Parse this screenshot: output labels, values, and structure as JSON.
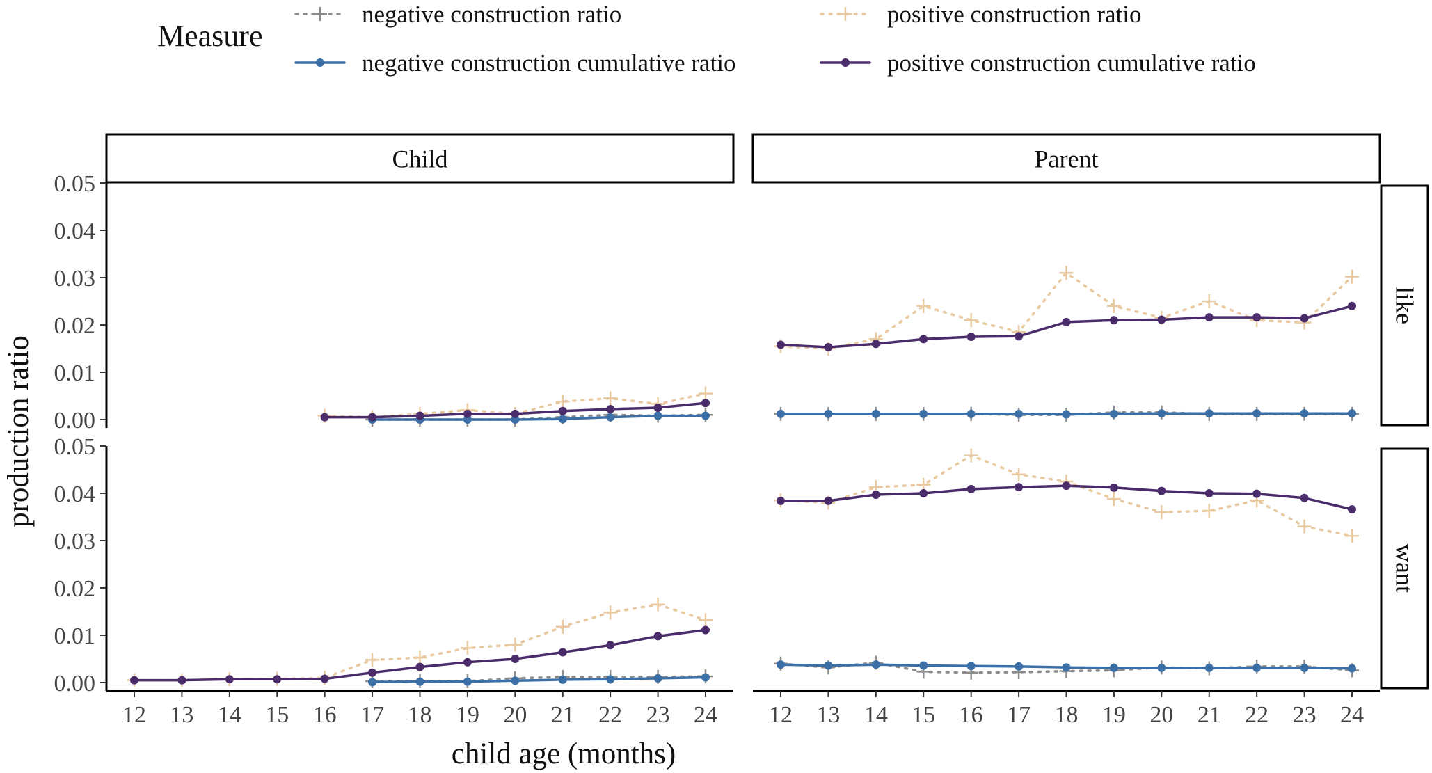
{
  "chart_data": {
    "type": "line",
    "xlabel": "child age (months)",
    "ylabel": "production ratio",
    "x": [
      12,
      13,
      14,
      15,
      16,
      17,
      18,
      19,
      20,
      21,
      22,
      23,
      24
    ],
    "x_ticks": [
      "12",
      "13",
      "14",
      "15",
      "16",
      "17",
      "18",
      "19",
      "20",
      "21",
      "22",
      "23",
      "24"
    ],
    "ylim": [
      0,
      0.05
    ],
    "y_ticks": [
      "0.00",
      "0.01",
      "0.02",
      "0.03",
      "0.04",
      "0.05"
    ],
    "columns": [
      "Child",
      "Parent"
    ],
    "rows": [
      "like",
      "want"
    ],
    "legend": {
      "title": "Measure",
      "position": "top",
      "entries": [
        {
          "key": "neg",
          "label": "negative construction ratio"
        },
        {
          "key": "pos",
          "label": "positive construction ratio"
        },
        {
          "key": "negcum",
          "label": "negative construction cumulative ratio"
        },
        {
          "key": "poscum",
          "label": "positive construction cumulative ratio"
        }
      ]
    },
    "styles": {
      "neg": {
        "color": "#8c8c8c",
        "dash": "dotted",
        "marker": "plus"
      },
      "pos": {
        "color": "#e8c9a0",
        "dash": "dotted",
        "marker": "plus"
      },
      "negcum": {
        "color": "#3b6fa6",
        "dash": "solid",
        "marker": "dot"
      },
      "poscum": {
        "color": "#4b2c6b",
        "dash": "solid",
        "marker": "dot"
      }
    },
    "grid": false,
    "panels": [
      {
        "column": "Child",
        "row": "like",
        "series": {
          "neg": [
            null,
            null,
            null,
            null,
            null,
            0.0,
            0.0,
            0.0,
            0.0,
            0.0005,
            0.001,
            0.0008,
            0.001
          ],
          "pos": [
            null,
            null,
            null,
            null,
            0.0008,
            0.0005,
            0.0012,
            0.002,
            0.0012,
            0.0038,
            0.0045,
            0.0033,
            0.0055
          ],
          "negcum": [
            null,
            null,
            null,
            null,
            null,
            0.0,
            0.0,
            0.0,
            0.0,
            0.0001,
            0.0005,
            0.0008,
            0.0008
          ],
          "poscum": [
            null,
            null,
            null,
            null,
            0.0005,
            0.0005,
            0.0008,
            0.0012,
            0.0012,
            0.0018,
            0.0022,
            0.0025,
            0.0035
          ]
        }
      },
      {
        "column": "Parent",
        "row": "like",
        "series": {
          "neg": [
            0.0012,
            0.0012,
            0.0012,
            0.0012,
            0.0012,
            0.001,
            0.001,
            0.0015,
            0.0015,
            0.0012,
            0.0012,
            0.0012,
            0.0012
          ],
          "pos": [
            0.0155,
            0.015,
            0.017,
            0.024,
            0.021,
            0.0185,
            0.031,
            0.024,
            0.0215,
            0.025,
            0.021,
            0.0205,
            0.0302
          ],
          "negcum": [
            0.0012,
            0.0012,
            0.0012,
            0.0012,
            0.0012,
            0.0012,
            0.0011,
            0.0012,
            0.0013,
            0.0013,
            0.0013,
            0.0013,
            0.0013
          ],
          "poscum": [
            0.0158,
            0.0153,
            0.016,
            0.017,
            0.0175,
            0.0176,
            0.0206,
            0.021,
            0.0211,
            0.0216,
            0.0216,
            0.0214,
            0.024
          ]
        }
      },
      {
        "column": "Child",
        "row": "want",
        "series": {
          "neg": [
            null,
            null,
            null,
            null,
            null,
            0.0003,
            0.0003,
            0.0003,
            0.0009,
            0.0012,
            0.0012,
            0.0012,
            0.0013
          ],
          "pos": [
            0.0005,
            0.0005,
            0.0007,
            0.0008,
            0.001,
            0.0048,
            0.0053,
            0.0073,
            0.008,
            0.0118,
            0.0148,
            0.0165,
            0.0132
          ],
          "negcum": [
            null,
            null,
            null,
            null,
            null,
            0.0001,
            0.0002,
            0.0002,
            0.0004,
            0.0006,
            0.0007,
            0.0009,
            0.0011
          ],
          "poscum": [
            0.0005,
            0.0005,
            0.0007,
            0.0007,
            0.0008,
            0.0021,
            0.0033,
            0.0043,
            0.005,
            0.0064,
            0.0079,
            0.0098,
            0.0111
          ]
        }
      },
      {
        "column": "Parent",
        "row": "want",
        "series": {
          "neg": [
            0.004,
            0.0032,
            0.0042,
            0.0023,
            0.0021,
            0.0022,
            0.0024,
            0.0026,
            0.0032,
            0.003,
            0.0034,
            0.0034,
            0.0026
          ],
          "pos": [
            0.0385,
            0.038,
            0.0413,
            0.0418,
            0.048,
            0.044,
            0.0425,
            0.0388,
            0.036,
            0.0363,
            0.0385,
            0.033,
            0.031
          ],
          "negcum": [
            0.0038,
            0.0036,
            0.0038,
            0.0036,
            0.0035,
            0.0034,
            0.0032,
            0.0031,
            0.0031,
            0.0031,
            0.0031,
            0.0031,
            0.003
          ],
          "poscum": [
            0.0384,
            0.0384,
            0.0397,
            0.04,
            0.0409,
            0.0413,
            0.0416,
            0.0412,
            0.0405,
            0.04,
            0.0399,
            0.039,
            0.0366
          ]
        }
      }
    ]
  }
}
